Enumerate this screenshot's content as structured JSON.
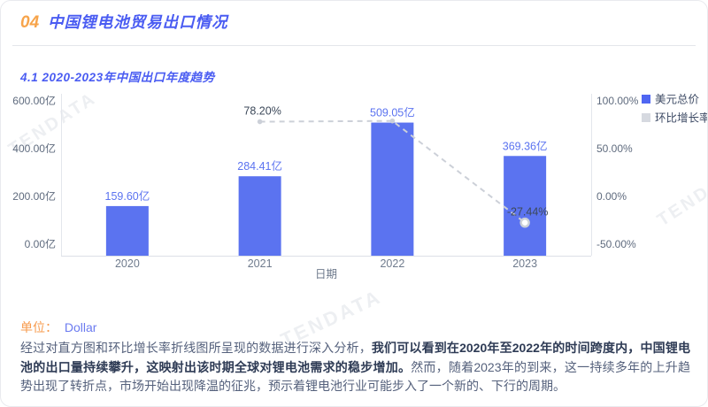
{
  "header": {
    "number": "04",
    "title": "中国锂电池贸易出口情况"
  },
  "section": {
    "subtitle": "4.1 2020-2023年中国出口年度趋势"
  },
  "chart_data": {
    "type": "bar",
    "combo": "bar+line dual axis",
    "title": "4.1 2020-2023年中国出口年度趋势",
    "categories": [
      "2020",
      "2021",
      "2022",
      "2023"
    ],
    "series": [
      {
        "name": "美元总价",
        "type": "bar",
        "unit": "亿",
        "values": [
          159.6,
          284.41,
          509.05,
          369.36
        ],
        "labels": [
          "159.60亿",
          "284.41亿",
          "509.05亿",
          "369.36亿"
        ],
        "color": "#5b73f0"
      },
      {
        "name": "环比增长率",
        "type": "line",
        "unit": "%",
        "values": [
          null,
          78.2,
          79.0,
          -27.44
        ],
        "labels": [
          "",
          "78.20%",
          "",
          "-27.44%"
        ],
        "color": "#ccd0d8"
      }
    ],
    "left_axis": {
      "title": "",
      "ticks": [
        "600.00亿",
        "400.00亿",
        "200.00亿",
        "0.00亿"
      ],
      "values": [
        600,
        400,
        200,
        0
      ],
      "range": [
        0,
        600
      ]
    },
    "right_axis": {
      "title": "",
      "ticks": [
        "100.00%",
        "50.00%",
        "0.00%",
        "-50.00%"
      ],
      "values": [
        100,
        50,
        0,
        -50
      ],
      "range": [
        -50,
        100
      ]
    },
    "xlabel": "日期",
    "ylabel": "",
    "grid": false,
    "legend_position": "top-right",
    "legend": [
      {
        "label": "美元总价",
        "color": "#4f66f2"
      },
      {
        "label": "环比增长率",
        "color": "#d6d9e0"
      }
    ]
  },
  "unit_line": {
    "label": "单位：",
    "value": "Dollar"
  },
  "analysis": {
    "segments": [
      {
        "text": "经过对直方图和环比增长率折线图所呈现的数据进行深入分析，",
        "bold": false
      },
      {
        "text": "我们可以看到在2020年至2022年的时间跨度内，中国锂电池的出口量持续攀升，这映射出该时期全球对锂电池需求的稳步增加。",
        "bold": true
      },
      {
        "text": "然而，随着2023年的到来，这一持续多年的上升趋势出现了转折点，市场开始出现降温的征兆，预示着锂电池行业可能步入了一个新的、下行的周期。",
        "bold": false
      }
    ]
  },
  "watermark": {
    "text": "TENDATA"
  },
  "colors": {
    "accent_blue": "#4a5cf2",
    "accent_orange": "#f7a44b",
    "bar_blue": "#5b73f0",
    "line_gray": "#ccd0d8",
    "axis_text": "#5f6b7e",
    "body_text": "#55617c",
    "body_text_bold": "#2e3b55",
    "watermark_gray": "#edeff2"
  }
}
